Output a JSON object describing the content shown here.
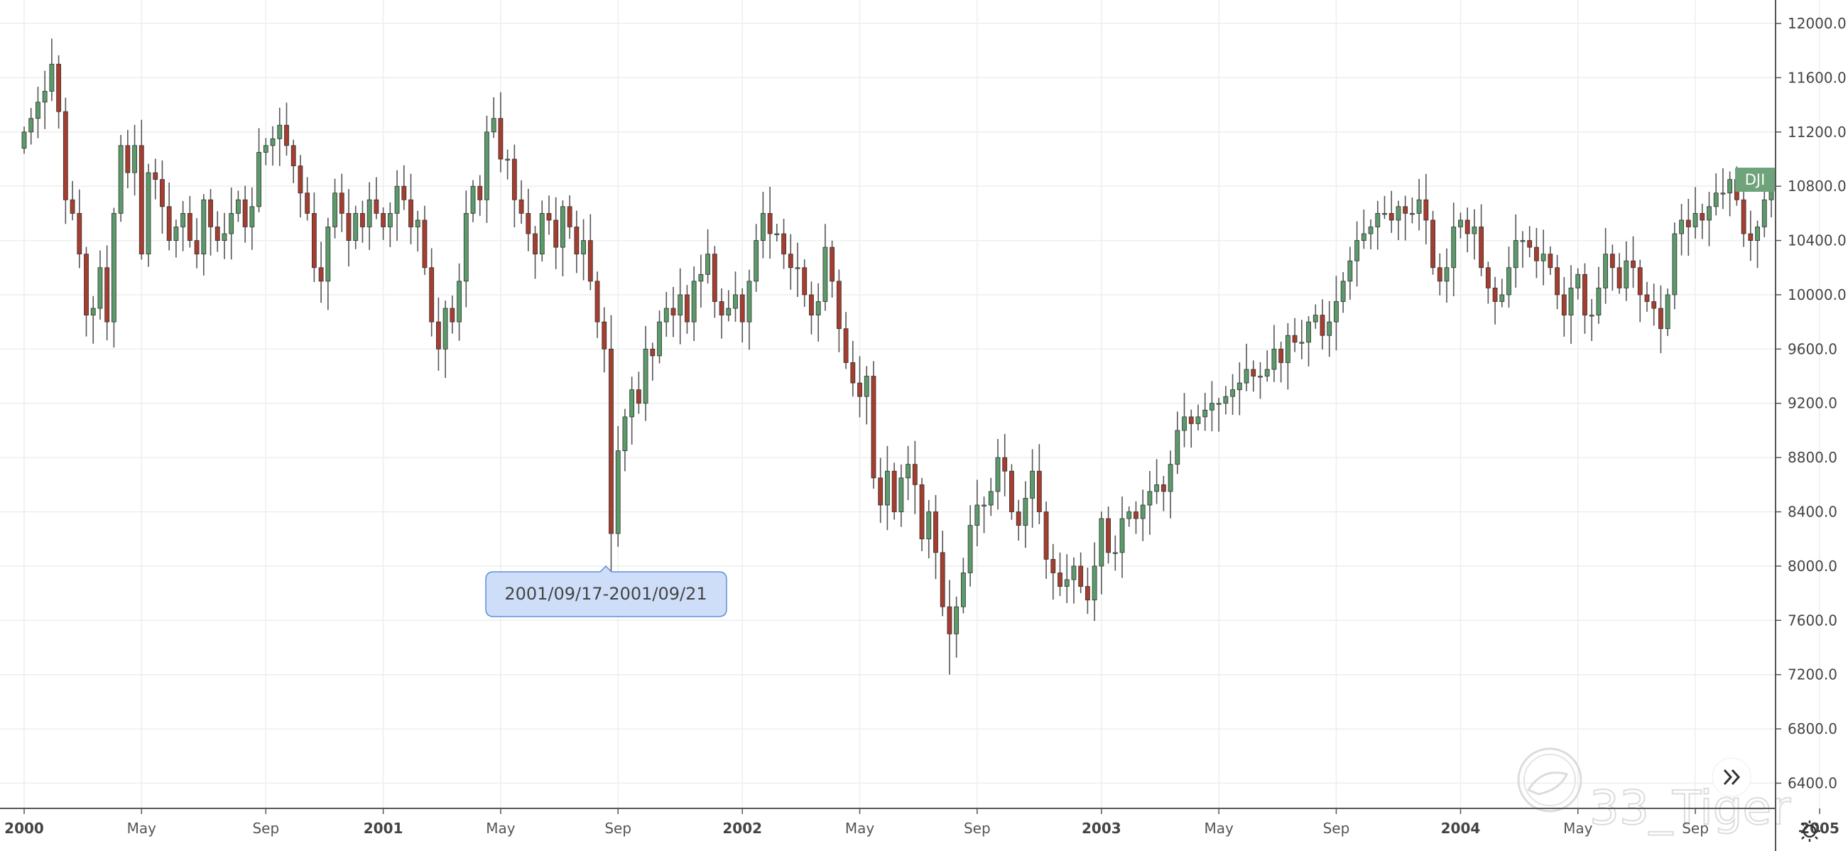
{
  "symbol": "DJI",
  "watermark": "33_Tiger",
  "tooltip_label": "2001/09/17-2001/09/21",
  "icons": {
    "scroll": "double-chevron-right-icon",
    "settings": "gear-icon",
    "logo": "tiger-logo-icon"
  },
  "colors": {
    "up": "#5b9a6a",
    "down": "#a63d2f",
    "wick": "#555555",
    "symbol_badge": "#6fa37b",
    "tooltip_bg": "#cfdef8",
    "tooltip_border": "#5e8fd8"
  },
  "chart_data": {
    "type": "candlestick",
    "interval": "weekly",
    "ylim": [
      6200,
      12000
    ],
    "yticks": [
      "12000.0",
      "11600.0",
      "11200.0",
      "10800.0",
      "10400.0",
      "10000.0",
      "9600.0",
      "9200.0",
      "8800.0",
      "8400.0",
      "8000.0",
      "7600.0",
      "7200.0",
      "6800.0",
      "6400.0"
    ],
    "xticks": [
      {
        "label": "2000",
        "index": 0,
        "year": true
      },
      {
        "label": "May",
        "index": 17,
        "year": false
      },
      {
        "label": "Sep",
        "index": 35,
        "year": false
      },
      {
        "label": "2001",
        "index": 52,
        "year": true
      },
      {
        "label": "May",
        "index": 69,
        "year": false
      },
      {
        "label": "Sep",
        "index": 86,
        "year": false
      },
      {
        "label": "2002",
        "index": 104,
        "year": true
      },
      {
        "label": "May",
        "index": 121,
        "year": false
      },
      {
        "label": "Sep",
        "index": 138,
        "year": false
      },
      {
        "label": "2003",
        "index": 156,
        "year": true
      },
      {
        "label": "May",
        "index": 173,
        "year": false
      },
      {
        "label": "Sep",
        "index": 190,
        "year": false
      },
      {
        "label": "2004",
        "index": 208,
        "year": true
      },
      {
        "label": "May",
        "index": 225,
        "year": false
      },
      {
        "label": "Sep",
        "index": 242,
        "year": false
      },
      {
        "label": "2005",
        "index": 260,
        "year": true
      }
    ],
    "closes": [
      11200,
      11300,
      11420,
      11500,
      11700,
      11350,
      10700,
      10600,
      10300,
      9850,
      9900,
      10200,
      9800,
      10600,
      11100,
      10900,
      11100,
      10300,
      10900,
      10850,
      10650,
      10400,
      10500,
      10600,
      10400,
      10300,
      10700,
      10500,
      10400,
      10450,
      10600,
      10700,
      10500,
      10650,
      11050,
      11100,
      11150,
      11250,
      11100,
      10950,
      10750,
      10600,
      10200,
      10100,
      10500,
      10750,
      10600,
      10400,
      10600,
      10500,
      10700,
      10600,
      10500,
      10600,
      10800,
      10700,
      10500,
      10550,
      10200,
      9800,
      9600,
      9900,
      9800,
      10100,
      10600,
      10800,
      10700,
      11200,
      11300,
      11000,
      11000,
      10700,
      10600,
      10450,
      10300,
      10600,
      10550,
      10350,
      10650,
      10500,
      10300,
      10400,
      10100,
      9800,
      9600,
      8240,
      8850,
      9100,
      9300,
      9200,
      9600,
      9550,
      9800,
      9900,
      9850,
      10000,
      9800,
      10100,
      10150,
      10300,
      9950,
      9850,
      9900,
      10000,
      9800,
      10100,
      10400,
      10600,
      10450,
      10450,
      10300,
      10200,
      10200,
      10000,
      9850,
      9950,
      10350,
      10100,
      9750,
      9500,
      9350,
      9250,
      9400,
      8650,
      8450,
      8700,
      8400,
      8650,
      8750,
      8600,
      8200,
      8400,
      8100,
      7700,
      7500,
      7700,
      7950,
      8300,
      8450,
      8450,
      8550,
      8800,
      8700,
      8400,
      8300,
      8500,
      8700,
      8400,
      8050,
      7950,
      7850,
      7900,
      8000,
      7850,
      7750,
      8000,
      8350,
      8100,
      8100,
      8350,
      8400,
      8350,
      8450,
      8550,
      8600,
      8550,
      8750,
      9000,
      9100,
      9050,
      9100,
      9150,
      9200,
      9200,
      9250,
      9300,
      9350,
      9450,
      9400,
      9400,
      9450,
      9600,
      9500,
      9700,
      9650,
      9650,
      9800,
      9850,
      9700,
      9800,
      9950,
      10100,
      10250,
      10400,
      10450,
      10500,
      10600,
      10600,
      10550,
      10650,
      10600,
      10600,
      10700,
      10550,
      10200,
      10100,
      10200,
      10500,
      10550,
      10450,
      10500,
      10200,
      10050,
      9950,
      10000,
      10200,
      10400,
      10400,
      10350,
      10250,
      10300,
      10200,
      10000,
      9850,
      10050,
      10150,
      9850,
      9850,
      10050,
      10300,
      10200,
      10050,
      10250,
      10200,
      10000,
      9950,
      9900,
      9750,
      10000,
      10450,
      10550,
      10500,
      10600,
      10550,
      10650,
      10750,
      10750,
      10850,
      10700,
      10450,
      10400,
      10500,
      10700,
      10800
    ]
  }
}
